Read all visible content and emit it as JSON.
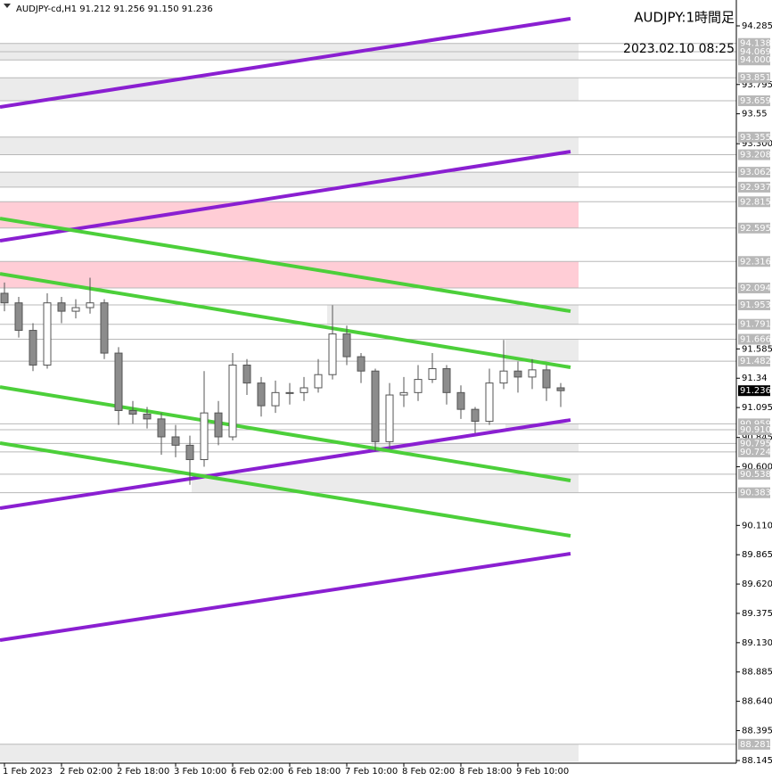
{
  "chart_data": {
    "type": "candlestick",
    "header": "AUDJPY-cd,H1  91.212 91.256 91.150 91.236",
    "title": "AUDJPY:1時間足",
    "subtitle": "2023.02.10 08:25",
    "xlim": [
      -1.25,
      205.25
    ],
    "ylim": [
      88.123,
      94.501
    ],
    "xticks": [
      {
        "value": 0,
        "label": "1 Feb 2023"
      },
      {
        "value": 16,
        "label": "2 Feb 02:00"
      },
      {
        "value": 32,
        "label": "2 Feb 18:00"
      },
      {
        "value": 48,
        "label": "3 Feb 10:00"
      },
      {
        "value": 64,
        "label": "6 Feb 02:00"
      },
      {
        "value": 80,
        "label": "6 Feb 18:00"
      },
      {
        "value": 96,
        "label": "7 Feb 10:00"
      },
      {
        "value": 112,
        "label": "8 Feb 02:00"
      },
      {
        "value": 128,
        "label": "8 Feb 18:00"
      },
      {
        "value": 144,
        "label": "9 Feb 10:00"
      }
    ],
    "yticks": [
      94.285,
      93.795,
      93.55,
      {
        "value": 93.3,
        "label": "93.300"
      },
      91.585,
      91.34,
      91.095,
      90.845,
      {
        "value": 90.6,
        "label": "90.600"
      },
      {
        "value": 90.11,
        "label": "90.110"
      },
      89.865,
      {
        "value": 89.62,
        "label": "89.620"
      },
      89.375,
      {
        "value": 89.13,
        "label": "89.130"
      },
      88.885,
      {
        "value": 88.64,
        "label": "88.640"
      },
      88.395,
      88.145
    ],
    "x": [
      0,
      4,
      8,
      12,
      16,
      20,
      24,
      28,
      32,
      36,
      40,
      44,
      48,
      52,
      56,
      60,
      64,
      68,
      72,
      76,
      80,
      84,
      88,
      92,
      96,
      100,
      104,
      108,
      112,
      116,
      120,
      124,
      128,
      132,
      136,
      140,
      144,
      148,
      152,
      156
    ],
    "open": [
      92.05,
      91.97,
      91.74,
      91.45,
      91.97,
      91.9,
      91.93,
      91.97,
      91.55,
      91.07,
      91.04,
      91.0,
      90.85,
      90.78,
      90.66,
      91.05,
      90.85,
      91.45,
      91.3,
      91.11,
      91.22,
      91.22,
      91.26,
      91.37,
      91.71,
      91.52,
      91.4,
      90.81,
      91.2,
      91.22,
      91.33,
      91.42,
      91.22,
      91.08,
      90.98,
      91.3,
      91.4,
      91.35,
      91.41,
      91.26
    ],
    "high": [
      92.14,
      92.02,
      91.8,
      92.05,
      92.02,
      92.0,
      92.18,
      92.0,
      91.6,
      91.15,
      91.1,
      91.05,
      90.95,
      90.86,
      91.4,
      91.15,
      91.55,
      91.5,
      91.35,
      91.32,
      91.3,
      91.35,
      91.5,
      91.95,
      91.78,
      91.55,
      91.42,
      91.3,
      91.35,
      91.45,
      91.55,
      91.45,
      91.28,
      91.1,
      91.42,
      91.66,
      91.48,
      91.5,
      91.45,
      91.3
    ],
    "low": [
      91.9,
      91.68,
      91.4,
      91.42,
      91.8,
      91.84,
      91.88,
      91.5,
      90.95,
      90.96,
      90.92,
      90.7,
      90.68,
      90.45,
      90.6,
      90.78,
      90.82,
      91.2,
      91.02,
      91.05,
      91.12,
      91.15,
      91.22,
      91.33,
      91.45,
      91.3,
      90.73,
      90.75,
      91.1,
      91.15,
      91.3,
      91.12,
      91.0,
      90.88,
      90.95,
      91.25,
      91.22,
      91.25,
      91.15,
      91.1
    ],
    "close": [
      91.97,
      91.74,
      91.45,
      91.97,
      91.9,
      91.93,
      91.97,
      91.55,
      91.07,
      91.04,
      91.0,
      90.85,
      90.78,
      90.66,
      91.05,
      90.85,
      91.45,
      91.3,
      91.11,
      91.22,
      91.22,
      91.26,
      91.37,
      91.71,
      91.52,
      91.4,
      90.81,
      91.2,
      91.22,
      91.33,
      91.42,
      91.22,
      91.08,
      90.98,
      91.3,
      91.4,
      91.35,
      91.41,
      91.26,
      91.236
    ],
    "current_price": 91.236,
    "levels": [
      94.138,
      94.069,
      {
        "value": 94,
        "label": "94.000"
      },
      93.851,
      93.659,
      93.355,
      93.208,
      93.062,
      92.937,
      92.815,
      92.595,
      92.316,
      92.094,
      91.953,
      91.791,
      91.666,
      91.482,
      90.959,
      {
        "value": 90.91,
        "label": "90.910"
      },
      90.795,
      90.724,
      90.538,
      90.383,
      88.281
    ],
    "zones": [
      {
        "top": 94.138,
        "bottom": 94.0,
        "x_start": -1.25,
        "x_end": 161,
        "color": "#ebebeb"
      },
      {
        "top": 93.851,
        "bottom": 93.659,
        "x_start": -1.25,
        "x_end": 161,
        "color": "#ebebeb"
      },
      {
        "top": 93.355,
        "bottom": 93.208,
        "x_start": -1.25,
        "x_end": 161,
        "color": "#ebebeb"
      },
      {
        "top": 93.062,
        "bottom": 92.937,
        "x_start": -1.25,
        "x_end": 161,
        "color": "#ebebeb"
      },
      {
        "top": 92.815,
        "bottom": 92.595,
        "x_start": -1.25,
        "x_end": 161,
        "color": "#ffcdd6"
      },
      {
        "top": 92.316,
        "bottom": 92.094,
        "x_start": -1.25,
        "x_end": 161,
        "color": "#ffcdd6"
      },
      {
        "top": 91.953,
        "bottom": 91.791,
        "x_start": 90.5,
        "x_end": 161,
        "color": "#ebebeb"
      },
      {
        "top": 91.666,
        "bottom": 91.482,
        "x_start": 140.5,
        "x_end": 161,
        "color": "#ebebeb"
      },
      {
        "top": 90.959,
        "bottom": 90.91,
        "x_start": 140.5,
        "x_end": 161,
        "color": "#ebebeb"
      },
      {
        "top": 90.795,
        "bottom": 90.724,
        "x_start": 103,
        "x_end": 161,
        "color": "#ebebeb"
      },
      {
        "top": 90.538,
        "bottom": 90.383,
        "x_start": 52.5,
        "x_end": 161,
        "color": "#ebebeb"
      },
      {
        "top": 88.281,
        "bottom": 88.135,
        "x_start": -1.25,
        "x_end": 161,
        "color": "#ebebeb"
      }
    ],
    "trendlines": [
      {
        "color": "#8a1fd1",
        "x": [
          -1.25,
          158.75
        ],
        "y": [
          93.607,
          94.345
        ]
      },
      {
        "color": "#8a1fd1",
        "x": [
          -1.25,
          158.75
        ],
        "y": [
          92.489,
          93.234
        ]
      },
      {
        "color": "#8a1fd1",
        "x": [
          -1.25,
          158.75
        ],
        "y": [
          90.254,
          90.991
        ]
      },
      {
        "color": "#8a1fd1",
        "x": [
          -1.25,
          158.75
        ],
        "y": [
          89.151,
          89.874
        ]
      },
      {
        "color": "#4ccf3a",
        "x": [
          -1.25,
          158.75
        ],
        "y": [
          92.675,
          91.9
        ]
      },
      {
        "color": "#4ccf3a",
        "x": [
          -1.25,
          158.75
        ],
        "y": [
          92.213,
          91.431
        ]
      },
      {
        "color": "#4ccf3a",
        "x": [
          -1.25,
          158.75
        ],
        "y": [
          91.267,
          90.485
        ]
      },
      {
        "color": "#4ccf3a",
        "x": [
          -1.25,
          158.75
        ],
        "y": [
          90.798,
          90.023
        ]
      }
    ],
    "up_color": "#ffffff",
    "down_color": "#8c8c8c",
    "level_color": "#b8b8b8",
    "price_label_color": "#000000"
  }
}
